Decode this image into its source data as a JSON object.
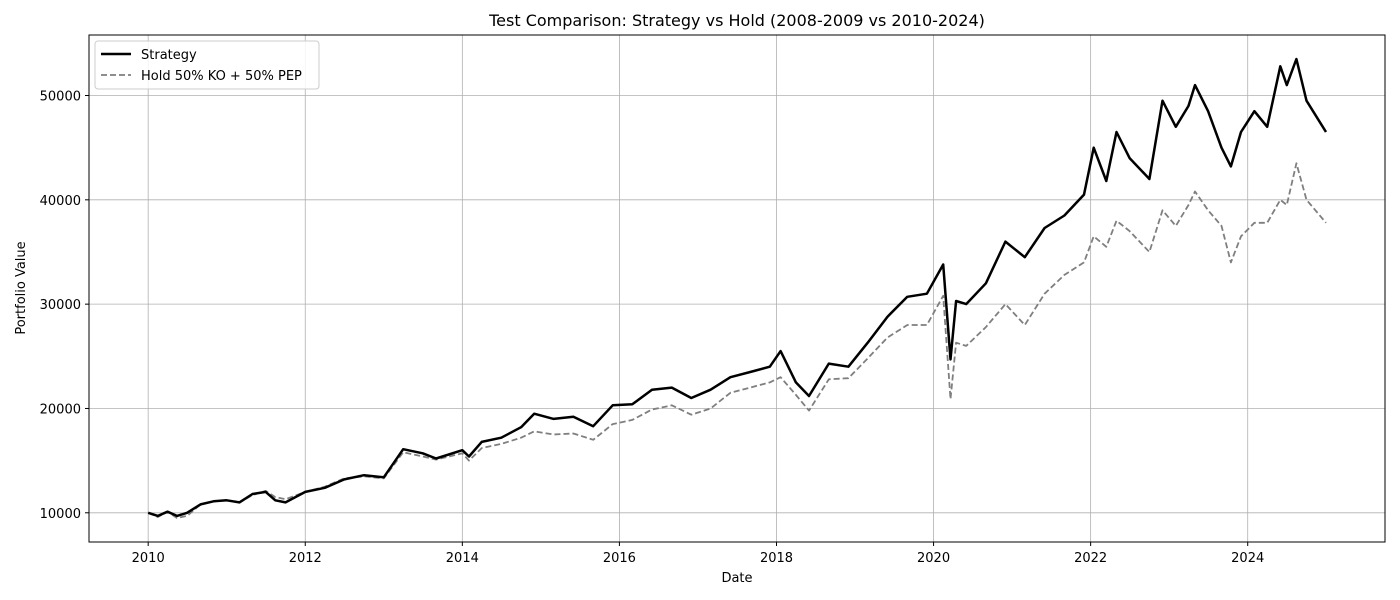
{
  "chart_data": {
    "type": "line",
    "title": "Test Comparison: Strategy vs Hold (2008-2009 vs 2010-2024)",
    "xlabel": "Date",
    "ylabel": "Portfolio Value",
    "xlim": [
      "2009-04-01",
      "2025-10-01"
    ],
    "ylim": [
      7200,
      55800
    ],
    "x_ticks": [
      "2010",
      "2012",
      "2014",
      "2016",
      "2018",
      "2020",
      "2022",
      "2024"
    ],
    "y_ticks": [
      10000,
      20000,
      30000,
      40000,
      50000
    ],
    "grid": true,
    "legend_position": "upper-left",
    "series": [
      {
        "name": "Strategy",
        "color": "#000000",
        "style": "solid",
        "points": [
          [
            "2010-01-01",
            10000
          ],
          [
            "2010-02-15",
            9700
          ],
          [
            "2010-04-01",
            10100
          ],
          [
            "2010-05-15",
            9700
          ],
          [
            "2010-07-01",
            10000
          ],
          [
            "2010-09-01",
            10800
          ],
          [
            "2010-11-01",
            11100
          ],
          [
            "2011-01-01",
            11200
          ],
          [
            "2011-03-01",
            11000
          ],
          [
            "2011-05-01",
            11800
          ],
          [
            "2011-07-01",
            12000
          ],
          [
            "2011-08-15",
            11200
          ],
          [
            "2011-10-01",
            11000
          ],
          [
            "2012-01-01",
            12000
          ],
          [
            "2012-04-01",
            12400
          ],
          [
            "2012-07-01",
            13200
          ],
          [
            "2012-10-01",
            13600
          ],
          [
            "2013-01-01",
            13400
          ],
          [
            "2013-04-01",
            16100
          ],
          [
            "2013-07-01",
            15700
          ],
          [
            "2013-09-01",
            15200
          ],
          [
            "2014-01-01",
            16000
          ],
          [
            "2014-02-01",
            15400
          ],
          [
            "2014-04-01",
            16800
          ],
          [
            "2014-07-01",
            17200
          ],
          [
            "2014-10-01",
            18200
          ],
          [
            "2014-12-01",
            19500
          ],
          [
            "2015-03-01",
            19000
          ],
          [
            "2015-06-01",
            19200
          ],
          [
            "2015-09-01",
            18300
          ],
          [
            "2015-12-01",
            20300
          ],
          [
            "2016-03-01",
            20400
          ],
          [
            "2016-06-01",
            21800
          ],
          [
            "2016-09-01",
            22000
          ],
          [
            "2016-12-01",
            21000
          ],
          [
            "2017-03-01",
            21800
          ],
          [
            "2017-06-01",
            23000
          ],
          [
            "2017-09-01",
            23500
          ],
          [
            "2017-12-01",
            24000
          ],
          [
            "2018-01-20",
            25500
          ],
          [
            "2018-04-01",
            22500
          ],
          [
            "2018-06-01",
            21200
          ],
          [
            "2018-09-01",
            24300
          ],
          [
            "2018-12-01",
            24000
          ],
          [
            "2019-03-01",
            26300
          ],
          [
            "2019-06-01",
            28800
          ],
          [
            "2019-09-01",
            30700
          ],
          [
            "2019-12-01",
            31000
          ],
          [
            "2020-02-15",
            33800
          ],
          [
            "2020-03-20",
            24700
          ],
          [
            "2020-04-15",
            30300
          ],
          [
            "2020-06-01",
            30000
          ],
          [
            "2020-09-01",
            32000
          ],
          [
            "2020-12-01",
            36000
          ],
          [
            "2021-03-01",
            34500
          ],
          [
            "2021-06-01",
            37300
          ],
          [
            "2021-09-01",
            38500
          ],
          [
            "2021-12-01",
            40500
          ],
          [
            "2022-01-15",
            45000
          ],
          [
            "2022-03-15",
            41800
          ],
          [
            "2022-05-01",
            46500
          ],
          [
            "2022-07-01",
            44000
          ],
          [
            "2022-10-01",
            42000
          ],
          [
            "2022-12-01",
            49500
          ],
          [
            "2023-02-01",
            47000
          ],
          [
            "2023-04-01",
            49000
          ],
          [
            "2023-05-01",
            51000
          ],
          [
            "2023-07-01",
            48500
          ],
          [
            "2023-09-01",
            45000
          ],
          [
            "2023-10-15",
            43200
          ],
          [
            "2023-12-01",
            46500
          ],
          [
            "2024-02-01",
            48500
          ],
          [
            "2024-04-01",
            47000
          ],
          [
            "2024-06-01",
            52800
          ],
          [
            "2024-07-01",
            51000
          ],
          [
            "2024-08-15",
            53500
          ],
          [
            "2024-10-01",
            49500
          ],
          [
            "2024-12-31",
            46500
          ]
        ]
      },
      {
        "name": "Hold 50% KO + 50% PEP",
        "color": "#7f7f7f",
        "style": "dashed",
        "points": [
          [
            "2010-01-01",
            10000
          ],
          [
            "2010-02-15",
            9600
          ],
          [
            "2010-04-01",
            10100
          ],
          [
            "2010-05-15",
            9500
          ],
          [
            "2010-07-01",
            9700
          ],
          [
            "2010-09-01",
            10800
          ],
          [
            "2010-11-01",
            11100
          ],
          [
            "2011-01-01",
            11200
          ],
          [
            "2011-03-01",
            11000
          ],
          [
            "2011-05-01",
            11700
          ],
          [
            "2011-07-01",
            12100
          ],
          [
            "2011-08-15",
            11500
          ],
          [
            "2011-10-01",
            11300
          ],
          [
            "2012-01-01",
            12000
          ],
          [
            "2012-04-01",
            12500
          ],
          [
            "2012-07-01",
            13300
          ],
          [
            "2012-10-01",
            13500
          ],
          [
            "2013-01-01",
            13300
          ],
          [
            "2013-04-01",
            15800
          ],
          [
            "2013-07-01",
            15400
          ],
          [
            "2013-09-01",
            15100
          ],
          [
            "2014-01-01",
            15700
          ],
          [
            "2014-02-01",
            15000
          ],
          [
            "2014-04-01",
            16200
          ],
          [
            "2014-07-01",
            16600
          ],
          [
            "2014-10-01",
            17200
          ],
          [
            "2014-12-01",
            17800
          ],
          [
            "2015-03-01",
            17500
          ],
          [
            "2015-06-01",
            17600
          ],
          [
            "2015-09-01",
            17000
          ],
          [
            "2015-12-01",
            18500
          ],
          [
            "2016-03-01",
            18900
          ],
          [
            "2016-06-01",
            19900
          ],
          [
            "2016-09-01",
            20300
          ],
          [
            "2016-12-01",
            19400
          ],
          [
            "2017-03-01",
            20000
          ],
          [
            "2017-06-01",
            21500
          ],
          [
            "2017-09-01",
            22000
          ],
          [
            "2017-12-01",
            22500
          ],
          [
            "2018-01-20",
            23000
          ],
          [
            "2018-04-01",
            21300
          ],
          [
            "2018-06-01",
            19800
          ],
          [
            "2018-09-01",
            22800
          ],
          [
            "2018-12-01",
            22900
          ],
          [
            "2019-03-01",
            24800
          ],
          [
            "2019-06-01",
            26800
          ],
          [
            "2019-09-01",
            28000
          ],
          [
            "2019-12-01",
            28000
          ],
          [
            "2020-02-15",
            30800
          ],
          [
            "2020-03-20",
            20900
          ],
          [
            "2020-04-15",
            26300
          ],
          [
            "2020-06-01",
            26000
          ],
          [
            "2020-09-01",
            27800
          ],
          [
            "2020-12-01",
            30000
          ],
          [
            "2021-03-01",
            28000
          ],
          [
            "2021-06-01",
            31000
          ],
          [
            "2021-09-01",
            32800
          ],
          [
            "2021-12-01",
            34000
          ],
          [
            "2022-01-15",
            36500
          ],
          [
            "2022-03-15",
            35500
          ],
          [
            "2022-05-01",
            38000
          ],
          [
            "2022-07-01",
            37000
          ],
          [
            "2022-10-01",
            35000
          ],
          [
            "2022-12-01",
            39000
          ],
          [
            "2023-02-01",
            37500
          ],
          [
            "2023-04-01",
            39500
          ],
          [
            "2023-05-01",
            40800
          ],
          [
            "2023-07-01",
            39000
          ],
          [
            "2023-09-01",
            37500
          ],
          [
            "2023-10-15",
            34000
          ],
          [
            "2023-12-01",
            36500
          ],
          [
            "2024-02-01",
            37800
          ],
          [
            "2024-04-01",
            37800
          ],
          [
            "2024-06-01",
            40000
          ],
          [
            "2024-07-01",
            39500
          ],
          [
            "2024-08-15",
            43500
          ],
          [
            "2024-10-01",
            40000
          ],
          [
            "2024-12-31",
            37800
          ]
        ]
      }
    ]
  }
}
